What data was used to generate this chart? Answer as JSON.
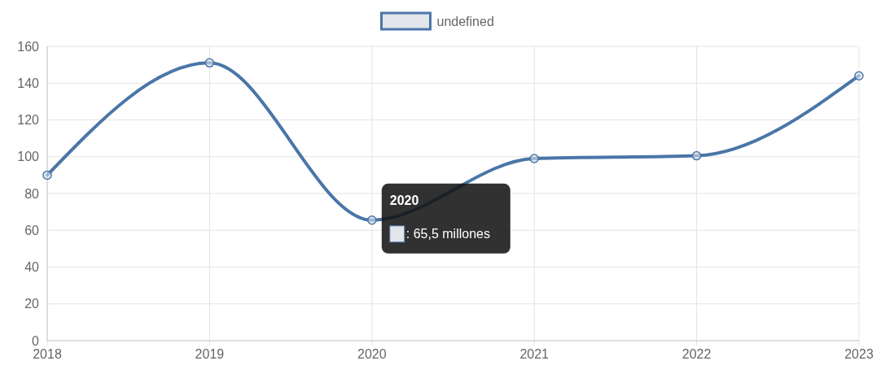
{
  "chart_data": {
    "type": "line",
    "categories": [
      "2018",
      "2019",
      "2020",
      "2021",
      "2022",
      "2023"
    ],
    "series": [
      {
        "name": "undefined",
        "color": "#4a76a8",
        "values": [
          90,
          151,
          65.5,
          99,
          100.5,
          144
        ]
      }
    ],
    "ylim": [
      0,
      160
    ],
    "yticks": [
      0,
      20,
      40,
      60,
      80,
      100,
      120,
      140,
      160
    ],
    "grid": true,
    "legend": "top",
    "marker": "circle",
    "line_style": "solid",
    "annotations": [
      {
        "text": ": 65,5 millones",
        "x": "2020",
        "y": 65.5
      }
    ]
  }
}
